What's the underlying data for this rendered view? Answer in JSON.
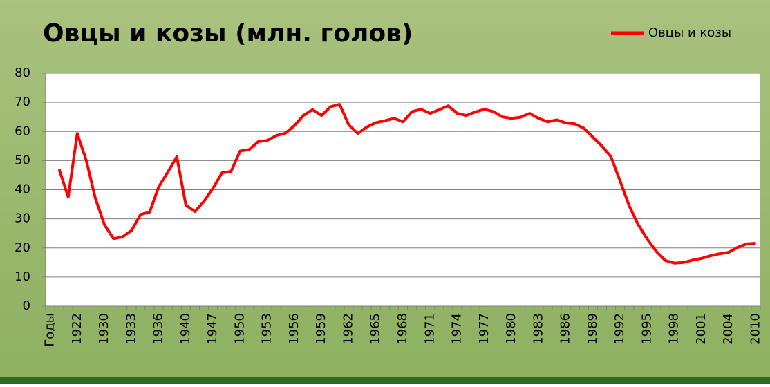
{
  "chart_data": {
    "type": "line",
    "title": "Овцы и козы (млн. голов)",
    "categories": [
      "Годы",
      null,
      null,
      "1922",
      null,
      null,
      "1930",
      null,
      null,
      "1933",
      null,
      null,
      "1936",
      null,
      null,
      "1940",
      null,
      null,
      "1947",
      null,
      null,
      "1950",
      null,
      null,
      "1953",
      null,
      null,
      "1956",
      null,
      null,
      "1959",
      null,
      null,
      "1962",
      null,
      null,
      "1965",
      null,
      null,
      "1968",
      null,
      null,
      "1971",
      null,
      null,
      "1974",
      null,
      null,
      "1977",
      null,
      null,
      "1980",
      null,
      null,
      "1983",
      null,
      null,
      "1986",
      null,
      null,
      "1989",
      null,
      null,
      "1992",
      null,
      null,
      "1995",
      null,
      null,
      "1998",
      null,
      null,
      "2001",
      null,
      null,
      "2004",
      null,
      null,
      "2010"
    ],
    "series": [
      {
        "name": "Овцы и козы",
        "color": "#ff0000",
        "values": [
          null,
          47,
          37.5,
          59.3,
          50,
          37,
          28,
          23.2,
          23.8,
          26,
          31.5,
          32.3,
          41,
          46,
          51.3,
          34.7,
          32.5,
          36,
          40.5,
          45.8,
          46.3,
          53.3,
          53.8,
          56.5,
          56.9,
          58.6,
          59.4,
          62,
          65.5,
          67.5,
          65.5,
          68.5,
          69.3,
          62.3,
          59.3,
          61.5,
          63,
          63.7,
          64.5,
          63.3,
          66.8,
          67.6,
          66.2,
          67.5,
          68.8,
          66.2,
          65.5,
          66.7,
          67.6,
          66.8,
          65,
          64.5,
          64.9,
          66.2,
          64.5,
          63.3,
          64,
          62.9,
          62.6,
          61.1,
          58,
          55,
          51.3,
          43,
          34.5,
          28,
          23,
          18.8,
          15.7,
          14.8,
          15,
          15.8,
          16.4,
          17.3,
          18,
          18.5,
          20.2,
          21.4,
          21.6
        ]
      }
    ],
    "ylim": [
      0,
      80
    ],
    "yticks": [
      0,
      10,
      20,
      30,
      40,
      50,
      60,
      70,
      80
    ],
    "grid": true,
    "legend": "top-right"
  }
}
